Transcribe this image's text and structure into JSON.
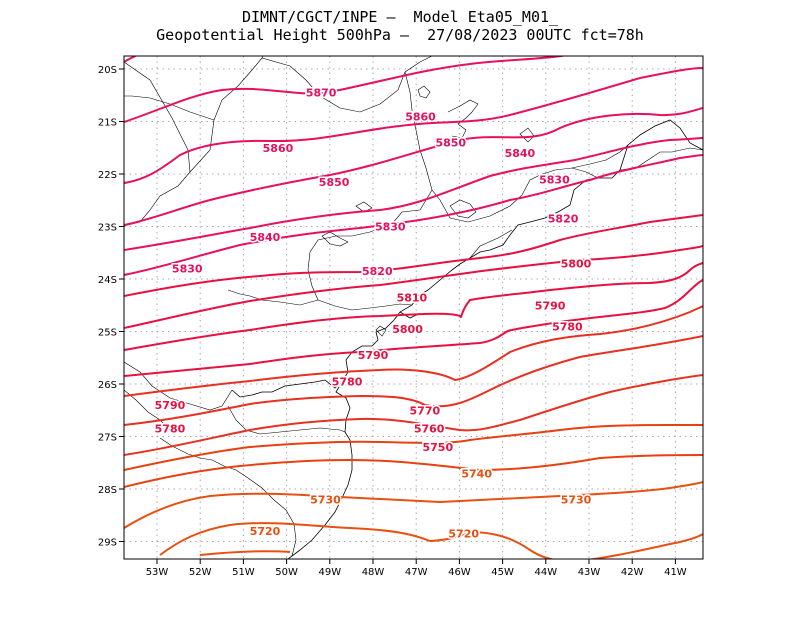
{
  "title_line1": "DIMNT/CGCT/INPE –  Model Eta05_M01_",
  "title_line2": "Geopotential Height 500hPa –  27/08/2023 00UTC fct=78h",
  "lat_labels": [
    "20S",
    "21S",
    "22S",
    "23S",
    "24S",
    "25S",
    "26S",
    "27S",
    "28S",
    "29S"
  ],
  "lon_labels": [
    "53W",
    "52W",
    "51W",
    "50W",
    "49W",
    "48W",
    "47W",
    "46W",
    "45W",
    "44W",
    "43W",
    "42W",
    "41W"
  ],
  "contour_labels": [
    {
      "text": "5870",
      "lon": -49.2,
      "lat": -20.45
    },
    {
      "text": "5860",
      "lon": -46.9,
      "lat": -20.9
    },
    {
      "text": "5860",
      "lon": -50.2,
      "lat": -21.5
    },
    {
      "text": "5850",
      "lon": -46.2,
      "lat": -21.4
    },
    {
      "text": "5840",
      "lon": -44.6,
      "lat": -21.6
    },
    {
      "text": "5850",
      "lon": -48.9,
      "lat": -22.15
    },
    {
      "text": "5830",
      "lon": -43.8,
      "lat": -22.1
    },
    {
      "text": "5830",
      "lon": -47.6,
      "lat": -23.0
    },
    {
      "text": "5820",
      "lon": -43.6,
      "lat": -22.85
    },
    {
      "text": "5840",
      "lon": -50.5,
      "lat": -23.2
    },
    {
      "text": "5830",
      "lon": -52.3,
      "lat": -23.8
    },
    {
      "text": "5820",
      "lon": -47.9,
      "lat": -23.85
    },
    {
      "text": "5800",
      "lon": -43.3,
      "lat": -23.7
    },
    {
      "text": "5810",
      "lon": -47.1,
      "lat": -24.35
    },
    {
      "text": "5790",
      "lon": -43.9,
      "lat": -24.5
    },
    {
      "text": "5780",
      "lon": -43.5,
      "lat": -24.9
    },
    {
      "text": "5800",
      "lon": -47.2,
      "lat": -24.95
    },
    {
      "text": "5790",
      "lon": -48.0,
      "lat": -25.45
    },
    {
      "text": "5780",
      "lon": -48.6,
      "lat": -25.95
    },
    {
      "text": "5790",
      "lon": -52.7,
      "lat": -26.4
    },
    {
      "text": "5770",
      "lon": -46.8,
      "lat": -26.5
    },
    {
      "text": "5780",
      "lon": -52.7,
      "lat": -26.85
    },
    {
      "text": "5760",
      "lon": -46.7,
      "lat": -26.85
    },
    {
      "text": "5750",
      "lon": -46.5,
      "lat": -27.2
    },
    {
      "text": "5740",
      "lon": -45.6,
      "lat": -27.7
    },
    {
      "text": "5730",
      "lon": -49.1,
      "lat": -28.2
    },
    {
      "text": "5730",
      "lon": -43.3,
      "lat": -28.2
    },
    {
      "text": "5720",
      "lon": -50.5,
      "lat": -28.8
    },
    {
      "text": "5720",
      "lon": -45.9,
      "lat": -28.85
    }
  ]
}
